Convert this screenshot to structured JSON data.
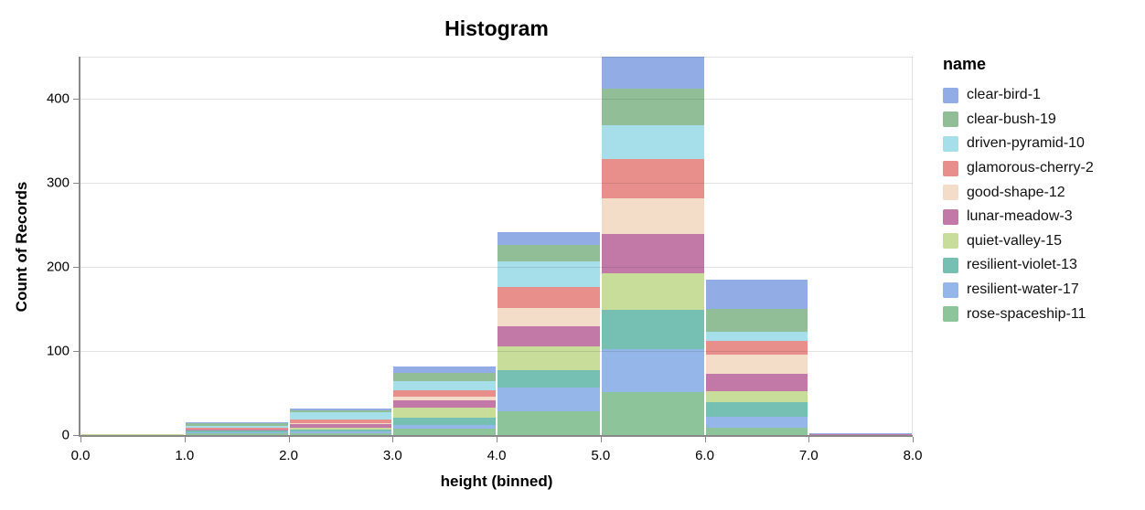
{
  "title": "Histogram",
  "chart_data": {
    "type": "bar",
    "subtype": "stacked-histogram",
    "title": "Histogram",
    "xlabel": "height (binned)",
    "ylabel": "Count of Records",
    "legend_title": "name",
    "legend_position": "right",
    "grid": true,
    "xlim": [
      0,
      8
    ],
    "ylim": [
      0,
      450
    ],
    "bin_edges": [
      0,
      1,
      2,
      3,
      4,
      5,
      6,
      7,
      8
    ],
    "x_tick_labels": [
      "0.0",
      "1.0",
      "2.0",
      "3.0",
      "4.0",
      "5.0",
      "6.0",
      "7.0",
      "8.0"
    ],
    "y_ticks": [
      0,
      100,
      200,
      300,
      400
    ],
    "y_tick_labels": [
      "0",
      "100",
      "200",
      "300",
      "400"
    ],
    "stack_note": "stacked bottom-to-top in reverse alphabetical order (rose-spaceship-11 on bottom, clear-bird-1 on top); bin totals: 1, 15, 32, 82, 241, 450, 185, 2",
    "series": [
      {
        "name": "clear-bird-1",
        "color": "#92ACE6",
        "values": [
          0,
          1,
          3,
          8,
          15,
          38,
          35,
          1
        ]
      },
      {
        "name": "clear-bush-19",
        "color": "#92BE97",
        "values": [
          0,
          3,
          2,
          10,
          20,
          43,
          27,
          0
        ]
      },
      {
        "name": "driven-pyramid-10",
        "color": "#A6DEE9",
        "values": [
          0,
          2,
          8,
          11,
          30,
          41,
          11,
          0
        ]
      },
      {
        "name": "glamorous-cherry-2",
        "color": "#E88F8B",
        "values": [
          0,
          2,
          5,
          7,
          25,
          47,
          16,
          0
        ]
      },
      {
        "name": "good-shape-12",
        "color": "#F3DCC8",
        "values": [
          0,
          0,
          1,
          5,
          22,
          42,
          23,
          0
        ]
      },
      {
        "name": "lunar-meadow-3",
        "color": "#C379A8",
        "values": [
          0,
          1,
          4,
          8,
          24,
          47,
          21,
          1
        ]
      },
      {
        "name": "quiet-valley-15",
        "color": "#C9DD9B",
        "values": [
          1,
          1,
          3,
          12,
          28,
          43,
          13,
          0
        ]
      },
      {
        "name": "resilient-violet-13",
        "color": "#75C0B2",
        "values": [
          0,
          2,
          2,
          9,
          21,
          47,
          17,
          0
        ]
      },
      {
        "name": "resilient-water-17",
        "color": "#95B6E8",
        "values": [
          0,
          1,
          2,
          4,
          28,
          51,
          13,
          0
        ]
      },
      {
        "name": "rose-spaceship-11",
        "color": "#8EC499",
        "values": [
          0,
          2,
          2,
          8,
          28,
          51,
          9,
          0
        ]
      }
    ]
  },
  "style_colors": {
    "axis_line": "#888888",
    "gridline": "#dddddd",
    "text": "#000000",
    "background": "#ffffff"
  }
}
